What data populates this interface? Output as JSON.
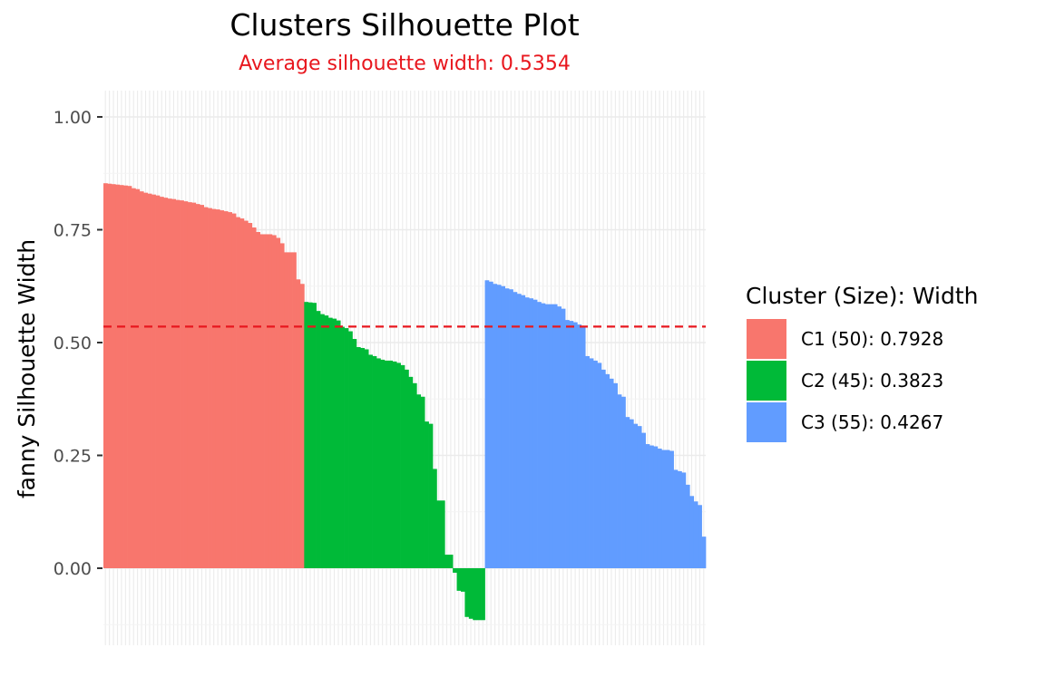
{
  "chart_data": {
    "type": "bar",
    "title": "Clusters Silhouette Plot",
    "subtitle": "Average silhouette width: 0.5354",
    "ylabel": "fanny Silhouette Width",
    "xlabel": "",
    "ylim": [
      -0.17,
      1.06
    ],
    "yticks": [
      0,
      0.25,
      0.5,
      0.75,
      1
    ],
    "ytick_labels": [
      "0.00",
      "0.25",
      "0.50",
      "0.75",
      "1.00"
    ],
    "average_line": 0.5354,
    "average_line_color": "#e8171e",
    "grid": true,
    "legend_position": "right",
    "legend_title": "Cluster (Size): Width",
    "series": [
      {
        "name": "C1 (50): 0.7928",
        "color": "#F8766D",
        "values": [
          0.853,
          0.852,
          0.851,
          0.85,
          0.849,
          0.848,
          0.847,
          0.842,
          0.84,
          0.835,
          0.832,
          0.83,
          0.828,
          0.826,
          0.823,
          0.821,
          0.819,
          0.818,
          0.816,
          0.815,
          0.813,
          0.811,
          0.81,
          0.807,
          0.805,
          0.8,
          0.798,
          0.796,
          0.795,
          0.793,
          0.791,
          0.789,
          0.786,
          0.778,
          0.775,
          0.77,
          0.765,
          0.755,
          0.745,
          0.74,
          0.74,
          0.74,
          0.738,
          0.732,
          0.72,
          0.7,
          0.7,
          0.7,
          0.64,
          0.63
        ]
      },
      {
        "name": "C2 (45): 0.3823",
        "color": "#00BA38",
        "values": [
          0.59,
          0.589,
          0.588,
          0.57,
          0.563,
          0.56,
          0.555,
          0.553,
          0.549,
          0.535,
          0.532,
          0.525,
          0.508,
          0.49,
          0.488,
          0.485,
          0.473,
          0.47,
          0.465,
          0.462,
          0.46,
          0.46,
          0.458,
          0.455,
          0.45,
          0.44,
          0.424,
          0.41,
          0.385,
          0.38,
          0.325,
          0.32,
          0.22,
          0.15,
          0.15,
          0.03,
          0.03,
          -0.01,
          -0.05,
          -0.052,
          -0.108,
          -0.112,
          -0.115,
          -0.115,
          -0.115
        ]
      },
      {
        "name": "C3 (55): 0.4267",
        "color": "#619CFF",
        "values": [
          0.638,
          0.635,
          0.63,
          0.628,
          0.625,
          0.62,
          0.618,
          0.612,
          0.608,
          0.605,
          0.6,
          0.598,
          0.595,
          0.59,
          0.587,
          0.585,
          0.585,
          0.585,
          0.58,
          0.575,
          0.55,
          0.548,
          0.545,
          0.54,
          0.535,
          0.47,
          0.465,
          0.46,
          0.455,
          0.44,
          0.43,
          0.42,
          0.41,
          0.385,
          0.38,
          0.335,
          0.33,
          0.32,
          0.315,
          0.3,
          0.275,
          0.272,
          0.27,
          0.265,
          0.262,
          0.262,
          0.26,
          0.218,
          0.215,
          0.212,
          0.185,
          0.16,
          0.148,
          0.14,
          0.07
        ]
      }
    ]
  }
}
